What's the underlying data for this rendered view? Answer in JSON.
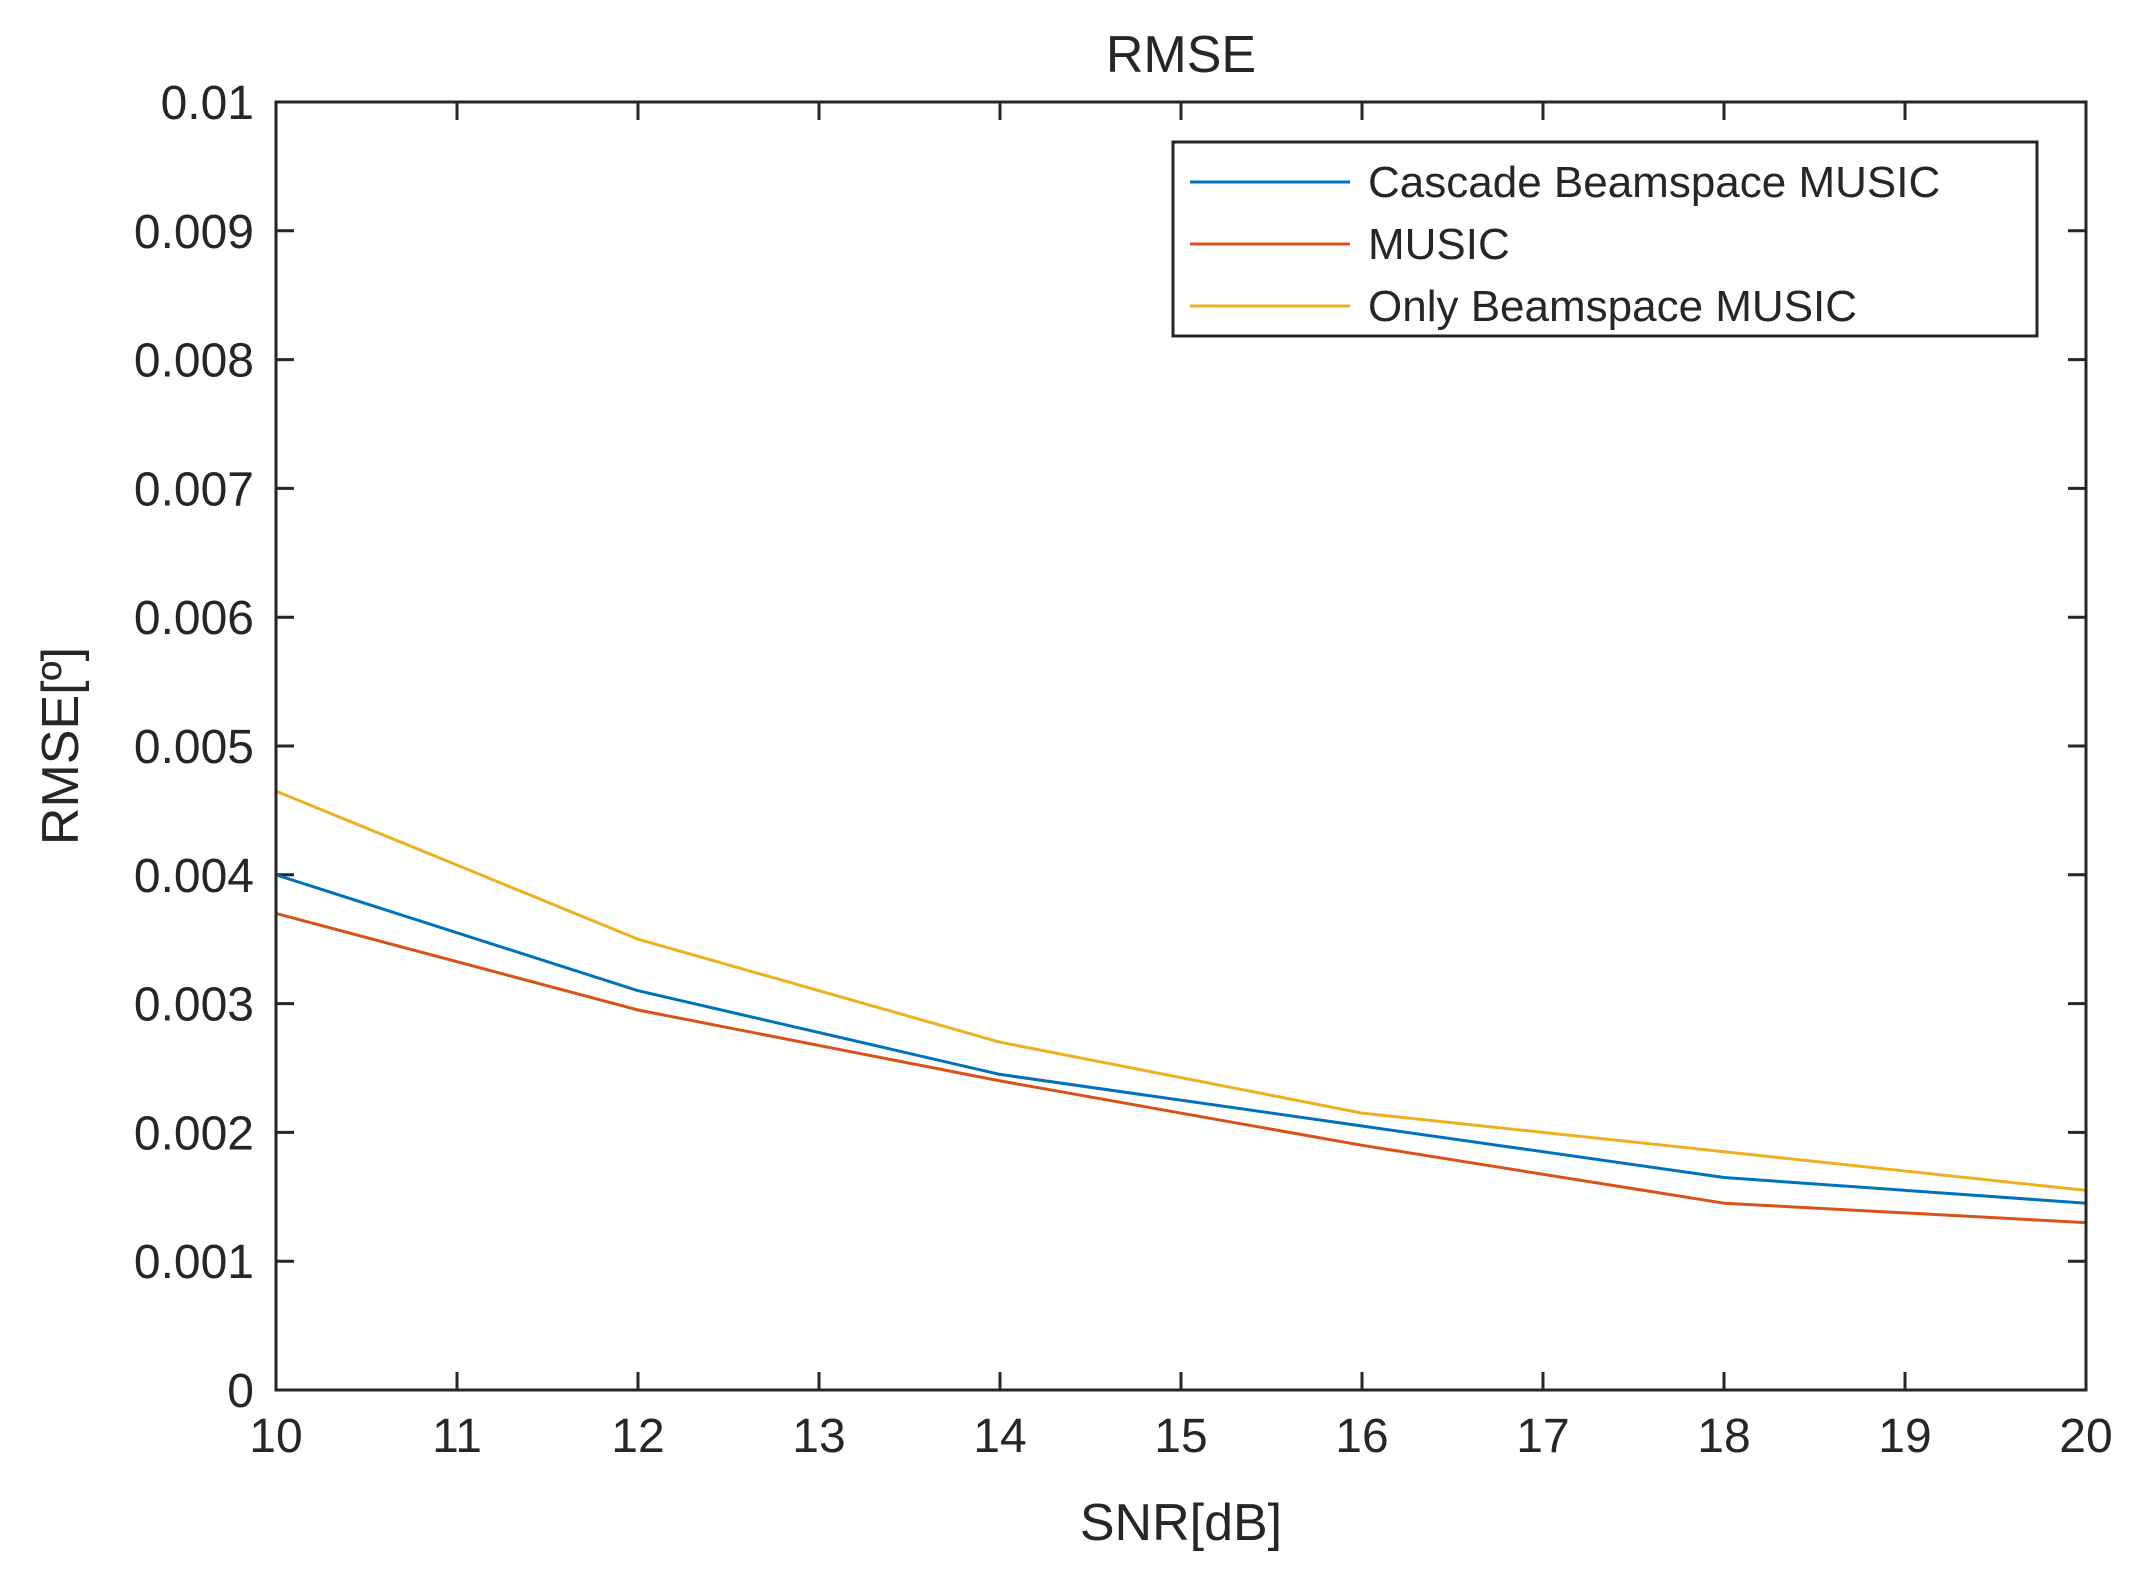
{
  "chart_data": {
    "type": "line",
    "title": "RMSE",
    "xlabel": "SNR[dB]",
    "ylabel": "RMSE[º]",
    "xlim": [
      10,
      20
    ],
    "ylim": [
      0,
      0.01
    ],
    "x_ticks": [
      10,
      11,
      12,
      13,
      14,
      15,
      16,
      17,
      18,
      19,
      20
    ],
    "x_tick_labels": [
      "10",
      "11",
      "12",
      "13",
      "14",
      "15",
      "16",
      "17",
      "18",
      "19",
      "20"
    ],
    "y_ticks": [
      0,
      0.001,
      0.002,
      0.003,
      0.004,
      0.005,
      0.006,
      0.007,
      0.008,
      0.009,
      0.01
    ],
    "y_tick_labels": [
      "0",
      "0.001",
      "0.002",
      "0.003",
      "0.004",
      "0.005",
      "0.006",
      "0.007",
      "0.008",
      "0.009",
      "0.01"
    ],
    "grid": false,
    "legend_position": "top-right",
    "x": [
      10,
      12,
      14,
      16,
      18,
      20
    ],
    "series": [
      {
        "name": "Cascade Beamspace MUSIC",
        "color": "#0072BD",
        "values": [
          0.004,
          0.0031,
          0.00245,
          0.00205,
          0.00165,
          0.00145
        ]
      },
      {
        "name": "MUSIC",
        "color": "#D95319",
        "values": [
          0.0037,
          0.00295,
          0.0024,
          0.0019,
          0.00145,
          0.0013
        ]
      },
      {
        "name": "Only Beamspace MUSIC",
        "color": "#EDB120",
        "values": [
          0.00465,
          0.0035,
          0.0027,
          0.00215,
          0.00185,
          0.00155
        ]
      }
    ]
  }
}
